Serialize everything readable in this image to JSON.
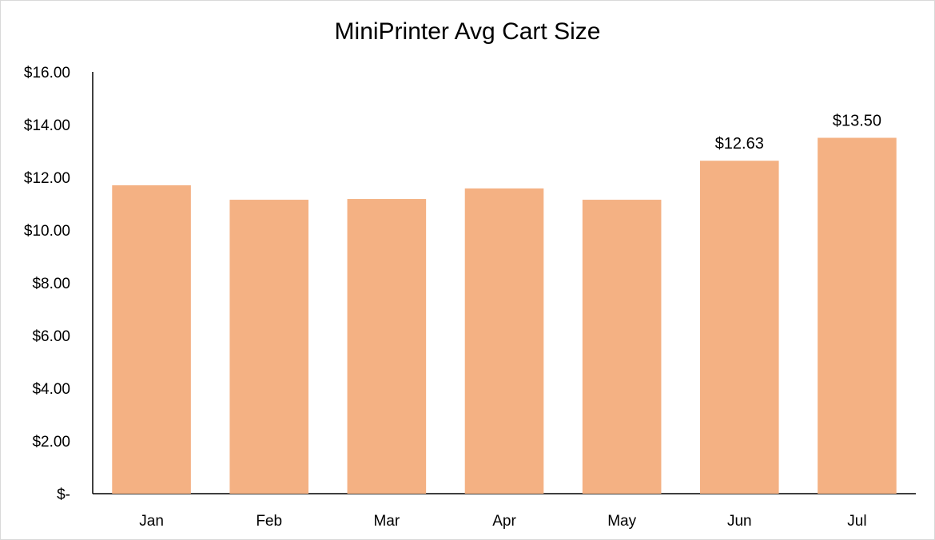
{
  "chart_data": {
    "type": "bar",
    "title": "MiniPrinter Avg Cart Size",
    "xlabel": "",
    "ylabel": "",
    "categories": [
      "Jan",
      "Feb",
      "Mar",
      "Apr",
      "May",
      "Jun",
      "Jul"
    ],
    "values": [
      11.7,
      11.15,
      11.18,
      11.58,
      11.15,
      12.63,
      13.5
    ],
    "data_labels": [
      "",
      "",
      "",
      "",
      "",
      "$12.63",
      "$13.50"
    ],
    "y_ticks": [
      0,
      2,
      4,
      6,
      8,
      10,
      12,
      14,
      16
    ],
    "y_tick_labels": [
      "$-",
      "$2.00",
      "$4.00",
      "$6.00",
      "$8.00",
      "$10.00",
      "$12.00",
      "$14.00",
      "$16.00"
    ],
    "ylim": [
      0,
      16
    ],
    "grid": false,
    "legend": "none",
    "bar_color": "#F4B183"
  }
}
